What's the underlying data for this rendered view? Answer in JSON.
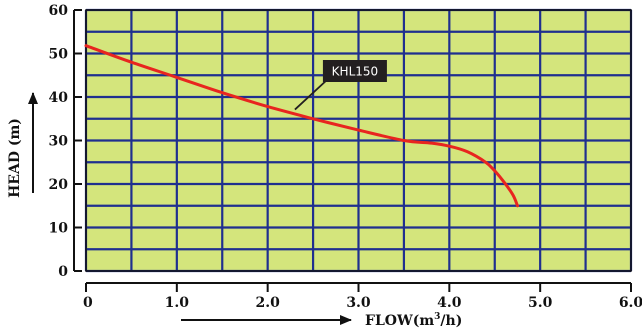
{
  "chart_data": {
    "type": "line",
    "xlabel_parts": [
      "FLOW(m",
      "3",
      "/h)"
    ],
    "ylabel": "HEAD (m)",
    "xlim": [
      0,
      6
    ],
    "ylim": [
      0,
      60
    ],
    "x_ticks": [
      0,
      1,
      2,
      3,
      4,
      5,
      6
    ],
    "x_tick_labels": [
      "0",
      "1.0",
      "2.0",
      "3.0",
      "4.0",
      "5.0",
      "6.0"
    ],
    "y_ticks": [
      0,
      10,
      20,
      30,
      40,
      50,
      60
    ],
    "y_tick_labels": [
      "0",
      "10",
      "20",
      "30",
      "40",
      "50",
      "60"
    ],
    "grid": true,
    "plot_background": "#d4e57c",
    "grid_color": "#1f2f8f",
    "callout_background": "#231f20",
    "series": [
      {
        "name": "KHL150",
        "color": "#e8251f",
        "points": [
          [
            0.0,
            51.8
          ],
          [
            0.5,
            48.0
          ],
          [
            1.0,
            44.5
          ],
          [
            1.5,
            41.0
          ],
          [
            2.0,
            37.8
          ],
          [
            2.5,
            35.0
          ],
          [
            3.0,
            32.4
          ],
          [
            3.5,
            30.0
          ],
          [
            3.8,
            29.4
          ],
          [
            4.0,
            28.7
          ],
          [
            4.2,
            27.4
          ],
          [
            4.4,
            25.0
          ],
          [
            4.5,
            23.0
          ],
          [
            4.6,
            20.5
          ],
          [
            4.7,
            17.5
          ],
          [
            4.75,
            15.0
          ]
        ]
      }
    ],
    "annotations": [
      {
        "text": "KHL150",
        "series": 0,
        "x": 2.3,
        "y": 36.2
      }
    ]
  }
}
